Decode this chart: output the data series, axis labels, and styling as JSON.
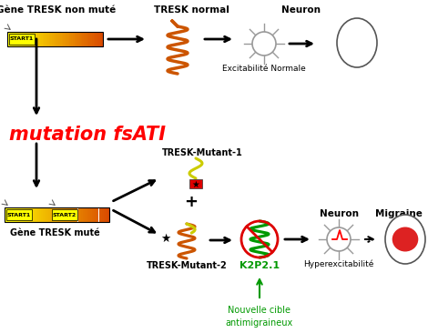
{
  "bg_color": "#ffffff",
  "top_labels": {
    "gene_non_mute": "Gène TRESK non muté",
    "tresk_normal": "TRESK normal",
    "neuron": "Neuron",
    "excitabilite": "Excitabilité Normale"
  },
  "mutation_label": "mutation fsATI",
  "bottom_labels": {
    "tresk_mutant1": "TRESK-Mutant-1",
    "plus": "+",
    "tresk_mutant2": "TRESK-Mutant-2",
    "k2p21": "K2P2.1",
    "hyperexcitabilite": "Hyperexcitabilité",
    "neuron2": "Neuron",
    "migraine": "Migraine",
    "gene_mute": "Gène TRESK muté",
    "nouvelle_cible": "Nouvelle cible\nantimigraineux"
  },
  "colors": {
    "orange_dark": "#CC4400",
    "orange_light": "#FFD700",
    "orange_mid": "#FF8C00",
    "red": "#DD0000",
    "green": "#009900",
    "black": "#000000",
    "white": "#ffffff",
    "yellow": "#FFFF00",
    "gray": "#888888",
    "mutation_red": "#FF0000",
    "dark_orange_coil": "#CC5500"
  }
}
